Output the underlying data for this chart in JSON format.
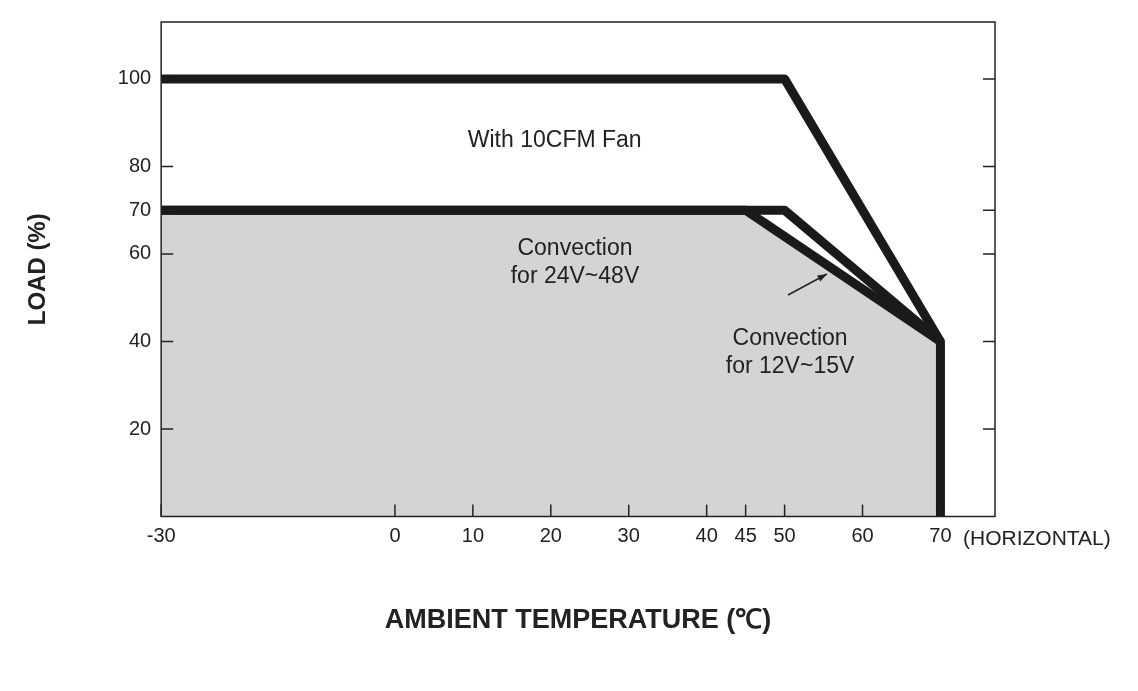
{
  "chart_data": {
    "type": "line",
    "xlabel": "AMBIENT TEMPERATURE (℃)",
    "ylabel": "LOAD (%)",
    "xlim": [
      -30,
      77
    ],
    "xticks": [
      -30,
      0,
      10,
      20,
      30,
      40,
      45,
      50,
      60,
      70
    ],
    "ylim": [
      0,
      113
    ],
    "yticks": [
      20,
      40,
      60,
      70,
      80,
      100
    ],
    "grid": false,
    "legend": false,
    "marker": "none",
    "line_style": "solid",
    "annotations": [
      "(HORIZONTAL)"
    ],
    "series": [
      {
        "name": "Convection for 12V~15V",
        "type": "area",
        "color": "#1a1a1a",
        "x": [
          -30,
          45,
          70,
          70
        ],
        "values": [
          70,
          70,
          40,
          0
        ]
      },
      {
        "name": "With 10CFM Fan",
        "type": "line",
        "color": "#1a1a1a",
        "x": [
          -30,
          50,
          70
        ],
        "values": [
          100,
          100,
          40
        ]
      },
      {
        "name": "Convection for 24V~48V",
        "type": "line",
        "color": "#1a1a1a",
        "x": [
          -30,
          50,
          70
        ],
        "values": [
          70,
          70,
          40
        ]
      }
    ]
  }
}
